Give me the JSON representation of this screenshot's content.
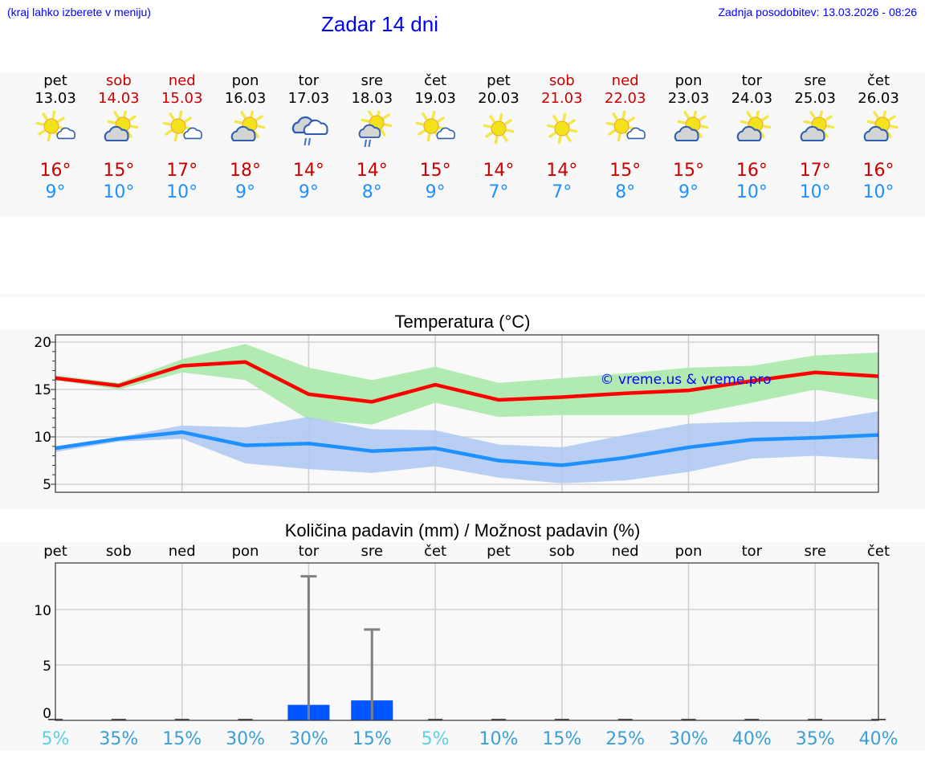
{
  "header": {
    "hint": "(kraj lahko izberete v meniju)",
    "title": "Zadar 14 dni",
    "updated": "Zadnja posodobitev: 13.03.2026 - 08:26"
  },
  "colors": {
    "header_text": "#0000ff",
    "weekend": "#cc0000",
    "tmax": "#cc0000",
    "tmin": "#1e90ff",
    "max_line": "#ff0000",
    "min_line": "#1e90ff",
    "max_band": "#aeeaae",
    "min_band": "#aec8f2",
    "rain_bar": "#0055ff",
    "error_bar": "#808080",
    "pct_low": "#5bd0e6",
    "pct": "#3a9fd8"
  },
  "days": [
    {
      "name": "pet",
      "date": "13.03",
      "weekend": false,
      "icon": "sun-small-cloud-icon",
      "tmax": "16°",
      "tmin": "9°"
    },
    {
      "name": "sob",
      "date": "14.03",
      "weekend": true,
      "icon": "cloud-over-sun-icon",
      "tmax": "15°",
      "tmin": "10°"
    },
    {
      "name": "ned",
      "date": "15.03",
      "weekend": true,
      "icon": "sun-small-cloud-icon",
      "tmax": "17°",
      "tmin": "10°"
    },
    {
      "name": "pon",
      "date": "16.03",
      "weekend": false,
      "icon": "cloud-over-sun-icon",
      "tmax": "18°",
      "tmin": "9°"
    },
    {
      "name": "tor",
      "date": "17.03",
      "weekend": false,
      "icon": "rain-clouds-icon",
      "tmax": "14°",
      "tmin": "9°"
    },
    {
      "name": "sre",
      "date": "18.03",
      "weekend": false,
      "icon": "sun-cloud-rain-icon",
      "tmax": "14°",
      "tmin": "8°"
    },
    {
      "name": "čet",
      "date": "19.03",
      "weekend": false,
      "icon": "sun-small-cloud-icon",
      "tmax": "15°",
      "tmin": "9°"
    },
    {
      "name": "pet",
      "date": "20.03",
      "weekend": false,
      "icon": "sun-icon",
      "tmax": "14°",
      "tmin": "7°"
    },
    {
      "name": "sob",
      "date": "21.03",
      "weekend": true,
      "icon": "sun-icon",
      "tmax": "14°",
      "tmin": "7°"
    },
    {
      "name": "ned",
      "date": "22.03",
      "weekend": true,
      "icon": "sun-small-cloud-icon",
      "tmax": "15°",
      "tmin": "8°"
    },
    {
      "name": "pon",
      "date": "23.03",
      "weekend": false,
      "icon": "cloud-over-sun-icon",
      "tmax": "15°",
      "tmin": "9°"
    },
    {
      "name": "tor",
      "date": "24.03",
      "weekend": false,
      "icon": "cloud-over-sun-icon",
      "tmax": "16°",
      "tmin": "10°"
    },
    {
      "name": "sre",
      "date": "25.03",
      "weekend": false,
      "icon": "cloud-over-sun-icon",
      "tmax": "17°",
      "tmin": "10°"
    },
    {
      "name": "čet",
      "date": "26.03",
      "weekend": false,
      "icon": "cloud-over-sun-icon",
      "tmax": "16°",
      "tmin": "10°"
    }
  ],
  "temp_chart": {
    "title": "Temperatura (°C)",
    "watermark": "© vreme.us & vreme.pro"
  },
  "precip_chart": {
    "title": "Količina padavin (mm) / Možnost padavin (%)"
  },
  "chart_data": [
    {
      "type": "line",
      "title": "Temperatura (°C)",
      "xlabel": "",
      "ylabel": "°C",
      "categories": [
        "13.03",
        "14.03",
        "15.03",
        "16.03",
        "17.03",
        "18.03",
        "19.03",
        "20.03",
        "21.03",
        "22.03",
        "23.03",
        "24.03",
        "25.03",
        "26.03"
      ],
      "yticks": [
        5,
        10,
        15,
        20
      ],
      "ylim": [
        4.1,
        20.8
      ],
      "grid": true,
      "series": [
        {
          "name": "max",
          "color": "#ff0000",
          "values": [
            16.2,
            15.4,
            17.5,
            17.9,
            14.5,
            13.7,
            15.5,
            13.9,
            14.2,
            14.6,
            14.9,
            15.9,
            16.8,
            16.4
          ]
        },
        {
          "name": "min",
          "color": "#1e90ff",
          "values": [
            8.8,
            9.8,
            10.5,
            9.1,
            9.3,
            8.5,
            8.8,
            7.5,
            7.0,
            7.8,
            8.9,
            9.7,
            9.9,
            10.2
          ]
        },
        {
          "name": "max_range_upper",
          "values": [
            16.5,
            15.7,
            18.2,
            19.8,
            17.3,
            16.0,
            17.4,
            15.7,
            16.2,
            16.7,
            17.3,
            17.5,
            18.6,
            18.9
          ]
        },
        {
          "name": "max_range_lower",
          "values": [
            16.0,
            15.0,
            16.8,
            16.0,
            11.8,
            11.3,
            13.6,
            12.1,
            12.3,
            12.3,
            12.3,
            13.6,
            15.0,
            13.9
          ]
        },
        {
          "name": "min_range_upper",
          "values": [
            8.9,
            10.0,
            11.2,
            11.0,
            12.1,
            10.8,
            10.7,
            9.2,
            8.9,
            10.2,
            11.4,
            11.6,
            11.6,
            12.7
          ]
        },
        {
          "name": "min_range_lower",
          "values": [
            8.4,
            9.5,
            9.8,
            7.2,
            6.6,
            6.2,
            6.9,
            5.7,
            5.1,
            5.4,
            6.3,
            7.7,
            8.0,
            7.6
          ]
        }
      ],
      "annotations": [
        "© vreme.us & vreme.pro"
      ]
    },
    {
      "type": "bar",
      "title": "Količina padavin (mm) / Možnost padavin (%)",
      "xlabel": "",
      "ylabel": "mm",
      "categories": [
        "pet",
        "sob",
        "ned",
        "pon",
        "tor",
        "sre",
        "čet",
        "pet",
        "sob",
        "ned",
        "pon",
        "tor",
        "sre",
        "čet"
      ],
      "yticks": [
        0,
        5,
        10
      ],
      "ylim": [
        0,
        14.3
      ],
      "grid": true,
      "series": [
        {
          "name": "precipitation_mm",
          "color": "#0055ff",
          "values": [
            0,
            0,
            0,
            0,
            1.4,
            1.8,
            0,
            0,
            0,
            0,
            0,
            0,
            0,
            0
          ]
        },
        {
          "name": "precipitation_max_mm",
          "color": "#808080",
          "values": [
            0,
            0,
            0,
            0,
            13.0,
            8.2,
            0,
            0,
            0,
            0,
            0,
            0,
            0,
            0
          ]
        }
      ],
      "probability_pct": [
        5,
        35,
        15,
        30,
        30,
        15,
        5,
        10,
        15,
        25,
        30,
        40,
        35,
        40
      ],
      "probability_labels": [
        "5%",
        "35%",
        "15%",
        "30%",
        "30%",
        "15%",
        "5%",
        "10%",
        "15%",
        "25%",
        "30%",
        "40%",
        "35%",
        "40%"
      ]
    }
  ]
}
